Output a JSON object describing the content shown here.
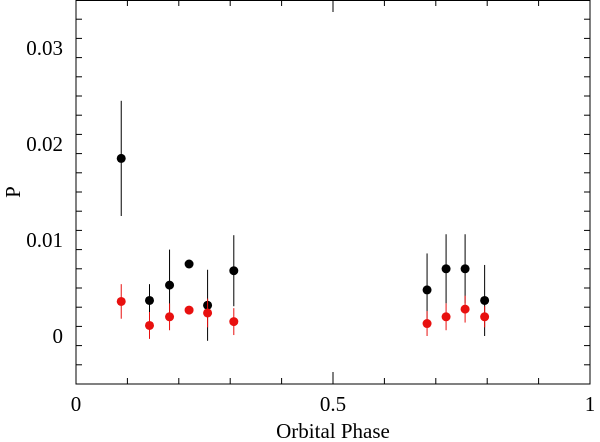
{
  "chart_data": {
    "type": "scatter",
    "xlabel": "Orbital Phase",
    "ylabel": "P",
    "xlim": [
      0,
      1
    ],
    "ylim": [
      -0.005,
      0.035
    ],
    "x_ticks": [
      {
        "value": 0,
        "label": "0"
      },
      {
        "value": 0.5,
        "label": "0.5"
      },
      {
        "value": 1,
        "label": "1"
      }
    ],
    "y_ticks": [
      {
        "value": 0,
        "label": "0"
      },
      {
        "value": 0.01,
        "label": "0.01"
      },
      {
        "value": 0.02,
        "label": "0.02"
      },
      {
        "value": 0.03,
        "label": "0.03"
      }
    ],
    "x_minor_step": 0.1,
    "y_minor_step": 0.002,
    "grid": false,
    "series": [
      {
        "color": "#000000",
        "points": [
          {
            "x": 0.088,
            "y": 0.0185,
            "err": 0.006
          },
          {
            "x": 0.143,
            "y": 0.0037,
            "err": 0.0017
          },
          {
            "x": 0.182,
            "y": 0.0053,
            "err": 0.0037
          },
          {
            "x": 0.22,
            "y": 0.0075,
            "err": 0.0003
          },
          {
            "x": 0.256,
            "y": 0.0032,
            "err": 0.0037
          },
          {
            "x": 0.307,
            "y": 0.0068,
            "err": 0.0037
          },
          {
            "x": 0.683,
            "y": 0.0048,
            "err": 0.0038
          },
          {
            "x": 0.72,
            "y": 0.007,
            "err": 0.0036
          },
          {
            "x": 0.757,
            "y": 0.007,
            "err": 0.0036
          },
          {
            "x": 0.795,
            "y": 0.0037,
            "err": 0.0037
          }
        ]
      },
      {
        "color": "#e8100f",
        "points": [
          {
            "x": 0.088,
            "y": 0.0036,
            "err": 0.0018
          },
          {
            "x": 0.143,
            "y": 0.0011,
            "err": 0.0014
          },
          {
            "x": 0.182,
            "y": 0.002,
            "err": 0.0014
          },
          {
            "x": 0.22,
            "y": 0.0027,
            "err": 0.0003
          },
          {
            "x": 0.256,
            "y": 0.0024,
            "err": 0.0015
          },
          {
            "x": 0.307,
            "y": 0.0015,
            "err": 0.0014
          },
          {
            "x": 0.683,
            "y": 0.0013,
            "err": 0.0013
          },
          {
            "x": 0.72,
            "y": 0.002,
            "err": 0.0014
          },
          {
            "x": 0.757,
            "y": 0.0028,
            "err": 0.0014
          },
          {
            "x": 0.795,
            "y": 0.002,
            "err": 0.0011
          }
        ]
      }
    ]
  }
}
